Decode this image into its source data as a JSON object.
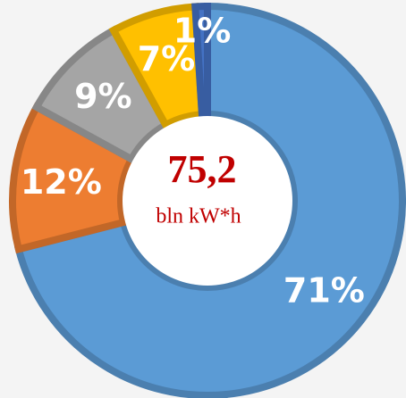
{
  "chart_data": {
    "type": "donut",
    "categories": [
      null,
      null,
      null,
      null,
      null
    ],
    "values": [
      71,
      12,
      9,
      7,
      1
    ],
    "value_labels": [
      "71%",
      "12%",
      "9%",
      "7%",
      "1%"
    ],
    "colors": [
      "#5b9bd5",
      "#ed7d31",
      "#a5a5a5",
      "#ffc000",
      "#4472c4"
    ],
    "annotations": [
      "75,2",
      "bln kW*h"
    ]
  }
}
